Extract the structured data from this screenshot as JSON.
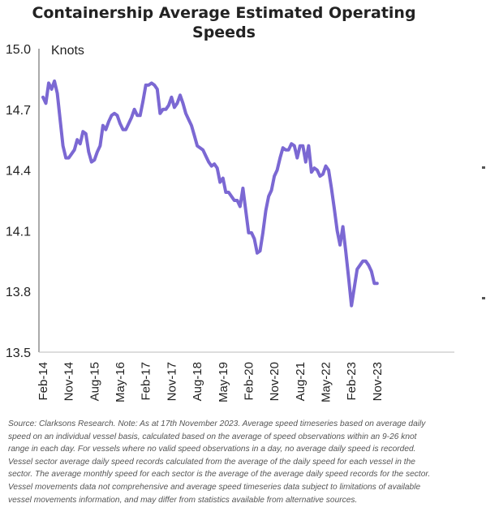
{
  "chart_data": {
    "type": "line",
    "title_lines": [
      "Containership Average Estimated Operating",
      "Speeds"
    ],
    "ylabel": "Knots",
    "xlabel": "",
    "ylim": [
      13.5,
      15.0
    ],
    "yticks": [
      "15.0",
      "14.7",
      "14.4",
      "14.1",
      "13.8",
      "13.5"
    ],
    "ytick_values": [
      15.0,
      14.7,
      14.4,
      14.1,
      13.8,
      13.5
    ],
    "xticks": [
      "Feb-14",
      "Nov-14",
      "Aug-15",
      "May-16",
      "Feb-17",
      "Nov-17",
      "Aug-18",
      "May-19",
      "Feb-20",
      "Nov-20",
      "Aug-21",
      "May-22",
      "Feb-23",
      "Nov-23"
    ],
    "grid": false,
    "line_color": "#7b68d3",
    "series": [
      {
        "points": [
          [
            "2014-02",
            14.76
          ],
          [
            "2014-03",
            14.73
          ],
          [
            "2014-04",
            14.83
          ],
          [
            "2014-05",
            14.8
          ],
          [
            "2014-06",
            14.84
          ],
          [
            "2014-07",
            14.78
          ],
          [
            "2014-08",
            14.65
          ],
          [
            "2014-09",
            14.52
          ],
          [
            "2014-10",
            14.46
          ],
          [
            "2014-11",
            14.46
          ],
          [
            "2014-12",
            14.48
          ],
          [
            "2015-01",
            14.5
          ],
          [
            "2015-02",
            14.55
          ],
          [
            "2015-03",
            14.53
          ],
          [
            "2015-04",
            14.59
          ],
          [
            "2015-05",
            14.58
          ],
          [
            "2015-06",
            14.49
          ],
          [
            "2015-07",
            14.44
          ],
          [
            "2015-08",
            14.45
          ],
          [
            "2015-09",
            14.49
          ],
          [
            "2015-10",
            14.52
          ],
          [
            "2015-11",
            14.62
          ],
          [
            "2015-12",
            14.6
          ],
          [
            "2016-01",
            14.64
          ],
          [
            "2016-02",
            14.67
          ],
          [
            "2016-03",
            14.68
          ],
          [
            "2016-04",
            14.67
          ],
          [
            "2016-05",
            14.63
          ],
          [
            "2016-06",
            14.6
          ],
          [
            "2016-07",
            14.6
          ],
          [
            "2016-08",
            14.63
          ],
          [
            "2016-09",
            14.66
          ],
          [
            "2016-10",
            14.7
          ],
          [
            "2016-11",
            14.67
          ],
          [
            "2016-12",
            14.67
          ],
          [
            "2017-01",
            14.74
          ],
          [
            "2017-02",
            14.82
          ],
          [
            "2017-03",
            14.82
          ],
          [
            "2017-04",
            14.83
          ],
          [
            "2017-05",
            14.82
          ],
          [
            "2017-06",
            14.8
          ],
          [
            "2017-07",
            14.68
          ],
          [
            "2017-08",
            14.7
          ],
          [
            "2017-09",
            14.7
          ],
          [
            "2017-10",
            14.72
          ],
          [
            "2017-11",
            14.76
          ],
          [
            "2017-12",
            14.71
          ],
          [
            "2018-01",
            14.73
          ],
          [
            "2018-02",
            14.77
          ],
          [
            "2018-03",
            14.73
          ],
          [
            "2018-04",
            14.68
          ],
          [
            "2018-05",
            14.65
          ],
          [
            "2018-06",
            14.62
          ],
          [
            "2018-07",
            14.57
          ],
          [
            "2018-08",
            14.52
          ],
          [
            "2018-09",
            14.51
          ],
          [
            "2018-10",
            14.5
          ],
          [
            "2018-11",
            14.47
          ],
          [
            "2018-12",
            14.44
          ],
          [
            "2019-01",
            14.42
          ],
          [
            "2019-02",
            14.43
          ],
          [
            "2019-03",
            14.41
          ],
          [
            "2019-04",
            14.34
          ],
          [
            "2019-05",
            14.36
          ],
          [
            "2019-06",
            14.29
          ],
          [
            "2019-07",
            14.29
          ],
          [
            "2019-08",
            14.27
          ],
          [
            "2019-09",
            14.25
          ],
          [
            "2019-10",
            14.25
          ],
          [
            "2019-11",
            14.22
          ],
          [
            "2019-12",
            14.31
          ],
          [
            "2020-01",
            14.2
          ],
          [
            "2020-02",
            14.09
          ],
          [
            "2020-03",
            14.09
          ],
          [
            "2020-04",
            14.06
          ],
          [
            "2020-05",
            13.99
          ],
          [
            "2020-06",
            14.0
          ],
          [
            "2020-07",
            14.09
          ],
          [
            "2020-08",
            14.2
          ],
          [
            "2020-09",
            14.27
          ],
          [
            "2020-10",
            14.3
          ],
          [
            "2020-11",
            14.37
          ],
          [
            "2020-12",
            14.4
          ],
          [
            "2021-01",
            14.46
          ],
          [
            "2021-02",
            14.51
          ],
          [
            "2021-03",
            14.5
          ],
          [
            "2021-04",
            14.5
          ],
          [
            "2021-05",
            14.53
          ],
          [
            "2021-06",
            14.52
          ],
          [
            "2021-07",
            14.46
          ],
          [
            "2021-08",
            14.52
          ],
          [
            "2021-09",
            14.52
          ],
          [
            "2021-10",
            14.44
          ],
          [
            "2021-11",
            14.52
          ],
          [
            "2021-12",
            14.39
          ],
          [
            "2022-01",
            14.41
          ],
          [
            "2022-02",
            14.4
          ],
          [
            "2022-03",
            14.37
          ],
          [
            "2022-04",
            14.38
          ],
          [
            "2022-05",
            14.42
          ],
          [
            "2022-06",
            14.4
          ],
          [
            "2022-07",
            14.31
          ],
          [
            "2022-08",
            14.21
          ],
          [
            "2022-09",
            14.1
          ],
          [
            "2022-10",
            14.03
          ],
          [
            "2022-11",
            14.12
          ],
          [
            "2022-12",
            14.0
          ],
          [
            "2023-01",
            13.87
          ],
          [
            "2023-02",
            13.73
          ],
          [
            "2023-03",
            13.82
          ],
          [
            "2023-04",
            13.91
          ],
          [
            "2023-05",
            13.93
          ],
          [
            "2023-06",
            13.95
          ],
          [
            "2023-07",
            13.95
          ],
          [
            "2023-08",
            13.93
          ],
          [
            "2023-09",
            13.9
          ],
          [
            "2023-10",
            13.84
          ],
          [
            "2023-11",
            13.84
          ]
        ]
      }
    ]
  },
  "source_note_lines": [
    "Source: Clarksons Research. Note: As at 17th November 2023. Average speed timeseries based on average daily",
    "speed on an individual vessel basis, calculated based on the average of speed observations within an 9-26 knot",
    "range in each day. For vessels where no valid speed observations in a day, no average daily speed is recorded.",
    "Vessel sector average daily speed records calculated from the average of the daily speed for each vessel in the",
    "sector. The average monthly speed for each sector is the average of the average daily speed records for the sector.",
    "Vessel movements data not comprehensive and average speed timeseries data subject to limitations of available",
    "vessel movements information, and may differ from statistics available from alternative sources."
  ]
}
